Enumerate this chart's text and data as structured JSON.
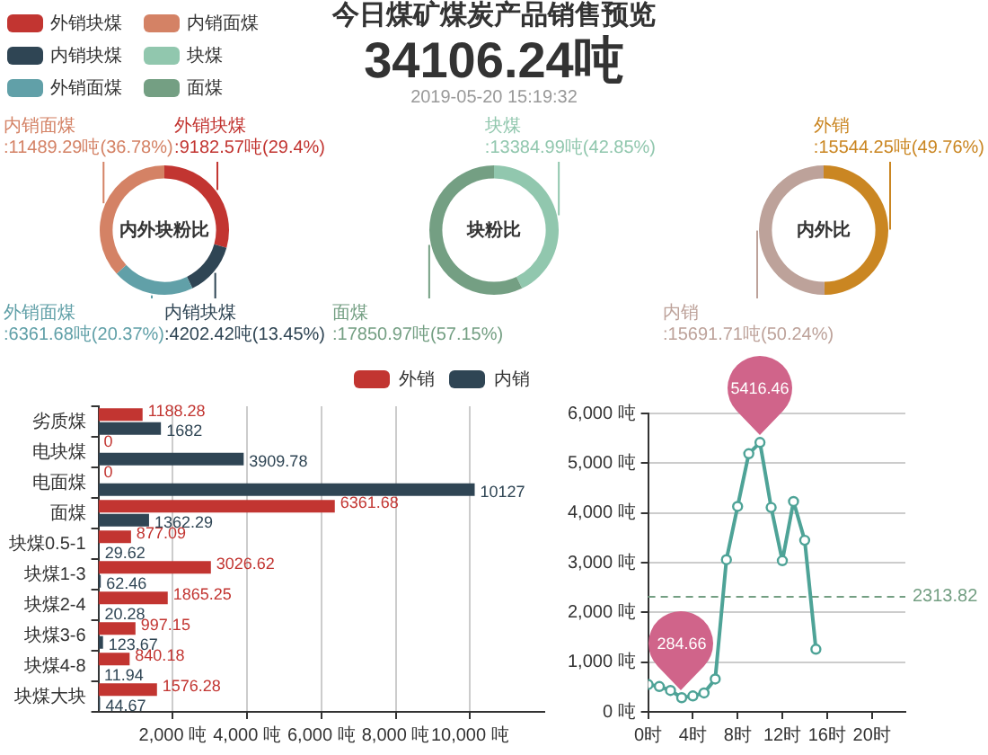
{
  "chart_data": [
    {
      "type": "other",
      "title": "今日煤矿煤炭产品销售预览",
      "annotations": [
        "34106.24吨"
      ],
      "subtitle": "2019-05-20 15:19:32"
    },
    {
      "type": "donut",
      "title": "内外块粉比",
      "categories": [
        "外销块煤",
        "内销块煤",
        "外销面煤",
        "内销面煤"
      ],
      "values": [
        9182.57,
        4202.42,
        6361.68,
        11489.29
      ],
      "colors": [
        "#c23531",
        "#2f4554",
        "#61a0a8",
        "#d48265"
      ],
      "value_labels": [
        ":9182.57吨(29.4%)",
        ":4202.42吨(13.45%)",
        ":6361.68吨(20.37%)",
        ":11489.29吨(36.78%)"
      ],
      "legend": "top left"
    },
    {
      "type": "donut",
      "title": "块粉比",
      "categories": [
        "块煤",
        "面煤"
      ],
      "values": [
        13384.99,
        17850.97
      ],
      "colors": [
        "#91c7ae",
        "#749f83"
      ],
      "value_labels": [
        ":13384.99吨(42.85%)",
        ":17850.97吨(57.15%)"
      ],
      "legend": "top left"
    },
    {
      "type": "donut",
      "title": "内外比",
      "categories": [
        "外销",
        "内销"
      ],
      "values": [
        15544.25,
        15691.71
      ],
      "colors": [
        "#ca8622",
        "#bda29a"
      ],
      "value_labels": [
        ":15544.25吨(49.76%)",
        ":15691.71吨(50.24%)"
      ]
    },
    {
      "type": "bar",
      "orientation": "horizontal",
      "categories": [
        "劣质煤",
        "电块煤",
        "电面煤",
        "面煤",
        "块煤0.5-1",
        "块煤1-3",
        "块煤2-4",
        "块煤3-6",
        "块煤4-8",
        "块煤大块"
      ],
      "series": [
        {
          "name": "外销",
          "color": "#c23531",
          "values": [
            1188.28,
            0,
            0,
            6361.68,
            877.09,
            3026.62,
            1865.25,
            997.15,
            840.18,
            1576.28
          ]
        },
        {
          "name": "内销",
          "color": "#2f4554",
          "values": [
            1682,
            3909.78,
            10127,
            1362.29,
            29.62,
            62.46,
            20.28,
            123.67,
            11.94,
            44.67
          ]
        }
      ],
      "xlim": [
        0,
        12000
      ],
      "xticks": [
        {
          "value": 2000,
          "label": "2,000 吨"
        },
        {
          "value": 4000,
          "label": "4,000 吨"
        },
        {
          "value": 6000,
          "label": "6,000 吨"
        },
        {
          "value": 8000,
          "label": "8,000 吨"
        },
        {
          "value": 10000,
          "label": "10,000 吨"
        }
      ],
      "grid": "x",
      "legend": "top right",
      "data_labels": true
    },
    {
      "type": "line",
      "x": [
        0,
        1,
        2,
        3,
        4,
        5,
        6,
        7,
        8,
        9,
        10,
        11,
        12,
        13,
        14,
        15
      ],
      "values": [
        550,
        510,
        430,
        284.66,
        320,
        380,
        660,
        3060,
        4130,
        5190,
        5416.46,
        4110,
        3040,
        4230,
        3450,
        1260
      ],
      "color": "#4ea397",
      "xlim": [
        0,
        23
      ],
      "xticks": [
        {
          "value": 0,
          "label": "0时"
        },
        {
          "value": 4,
          "label": "4时"
        },
        {
          "value": 8,
          "label": "8时"
        },
        {
          "value": 12,
          "label": "12时"
        },
        {
          "value": 16,
          "label": "16时"
        },
        {
          "value": 20,
          "label": "20时"
        }
      ],
      "ylim": [
        0,
        6000
      ],
      "yticks": [
        {
          "value": 0,
          "label": "0 吨"
        },
        {
          "value": 1000,
          "label": "1,000 吨"
        },
        {
          "value": 2000,
          "label": "2,000 吨"
        },
        {
          "value": 3000,
          "label": "3,000 吨"
        },
        {
          "value": 4000,
          "label": "4,000 吨"
        },
        {
          "value": 5000,
          "label": "5,000 吨"
        },
        {
          "value": 6000,
          "label": "6,000 吨"
        }
      ],
      "grid": "y",
      "marker": "circle",
      "ref_lines": [
        {
          "axis": "y",
          "value": 2313.82,
          "label": "2313.82",
          "color": "#749f83",
          "line_style": "dashed"
        }
      ],
      "annotations": [
        {
          "text": "5416.46",
          "x": 10,
          "y": 5416.46
        },
        {
          "text": "284.66",
          "x": 3,
          "y": 284.66
        }
      ]
    }
  ]
}
